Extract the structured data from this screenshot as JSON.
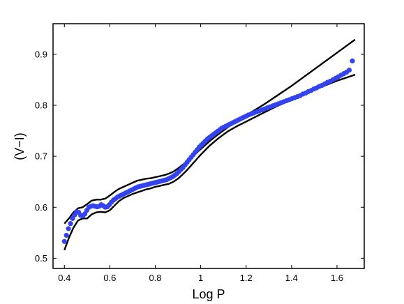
{
  "chart_data": {
    "type": "scatter",
    "xlabel": "Log P",
    "ylabel": "(V−I)",
    "xlim": [
      0.35,
      1.72
    ],
    "ylim": [
      0.48,
      0.96
    ],
    "x_ticks": [
      0.4,
      0.6,
      0.8,
      1.0,
      1.2,
      1.4,
      1.6
    ],
    "x_tick_labels": [
      "0.4",
      "0.6",
      "0.8",
      "1",
      "1.2",
      "1.4",
      "1.6"
    ],
    "y_ticks": [
      0.5,
      0.6,
      0.7,
      0.8,
      0.9
    ],
    "y_tick_labels": [
      "0.5",
      "0.6",
      "0.7",
      "0.8",
      "0.9"
    ],
    "grid": false,
    "legend": "none",
    "colors": {
      "points": "#3344ee",
      "bounds": "#000000"
    },
    "series": [
      {
        "role": "points",
        "x": [
          0.4,
          0.409,
          0.418,
          0.427,
          0.436,
          0.445,
          0.454,
          0.463,
          0.472,
          0.481,
          0.49,
          0.499,
          0.508,
          0.517,
          0.526,
          0.535,
          0.544,
          0.553,
          0.562,
          0.571,
          0.58,
          0.589,
          0.598,
          0.607,
          0.616,
          0.625,
          0.634,
          0.643,
          0.652,
          0.661,
          0.67,
          0.679,
          0.688,
          0.697,
          0.706,
          0.715,
          0.724,
          0.733,
          0.742,
          0.751,
          0.76,
          0.769,
          0.778,
          0.787,
          0.796,
          0.805,
          0.814,
          0.823,
          0.832,
          0.841,
          0.85,
          0.859,
          0.868,
          0.877,
          0.886,
          0.895,
          0.904,
          0.913,
          0.922,
          0.931,
          0.94,
          0.949,
          0.958,
          0.967,
          0.976,
          0.985,
          0.994,
          1.003,
          1.012,
          1.021,
          1.03,
          1.039,
          1.048,
          1.057,
          1.066,
          1.075,
          1.084,
          1.093,
          1.102,
          1.111,
          1.12,
          1.129,
          1.138,
          1.147,
          1.156,
          1.165,
          1.174,
          1.183,
          1.192,
          1.201,
          1.21,
          1.222,
          1.234,
          1.246,
          1.258,
          1.27,
          1.282,
          1.294,
          1.306,
          1.318,
          1.33,
          1.342,
          1.354,
          1.366,
          1.378,
          1.39,
          1.402,
          1.414,
          1.426,
          1.438,
          1.45,
          1.462,
          1.474,
          1.486,
          1.498,
          1.51,
          1.522,
          1.534,
          1.546,
          1.558,
          1.57,
          1.582,
          1.594,
          1.606,
          1.618,
          1.63,
          1.642,
          1.654,
          1.668
        ],
        "y": [
          0.533,
          0.545,
          0.558,
          0.568,
          0.578,
          0.585,
          0.591,
          0.59,
          0.584,
          0.583,
          0.587,
          0.594,
          0.6,
          0.602,
          0.603,
          0.602,
          0.601,
          0.602,
          0.605,
          0.603,
          0.6,
          0.601,
          0.605,
          0.61,
          0.614,
          0.617,
          0.62,
          0.622,
          0.624,
          0.626,
          0.628,
          0.63,
          0.632,
          0.634,
          0.636,
          0.638,
          0.64,
          0.641,
          0.642,
          0.643,
          0.644,
          0.645,
          0.646,
          0.647,
          0.648,
          0.649,
          0.65,
          0.651,
          0.652,
          0.653,
          0.654,
          0.656,
          0.658,
          0.66,
          0.663,
          0.666,
          0.67,
          0.674,
          0.678,
          0.683,
          0.688,
          0.693,
          0.698,
          0.703,
          0.708,
          0.713,
          0.718,
          0.722,
          0.726,
          0.73,
          0.734,
          0.737,
          0.74,
          0.743,
          0.746,
          0.749,
          0.752,
          0.755,
          0.757,
          0.759,
          0.761,
          0.763,
          0.765,
          0.767,
          0.769,
          0.771,
          0.773,
          0.775,
          0.777,
          0.779,
          0.781,
          0.783,
          0.785,
          0.787,
          0.789,
          0.791,
          0.793,
          0.795,
          0.797,
          0.799,
          0.801,
          0.803,
          0.805,
          0.807,
          0.809,
          0.811,
          0.813,
          0.815,
          0.817,
          0.819,
          0.822,
          0.824,
          0.827,
          0.829,
          0.832,
          0.834,
          0.837,
          0.839,
          0.842,
          0.845,
          0.847,
          0.85,
          0.853,
          0.856,
          0.859,
          0.862,
          0.865,
          0.869,
          0.887
        ]
      },
      {
        "role": "upper-bound",
        "x": [
          0.4,
          0.42,
          0.44,
          0.46,
          0.48,
          0.5,
          0.52,
          0.54,
          0.56,
          0.58,
          0.6,
          0.62,
          0.64,
          0.66,
          0.68,
          0.7,
          0.72,
          0.74,
          0.76,
          0.78,
          0.8,
          0.82,
          0.84,
          0.86,
          0.88,
          0.9,
          0.92,
          0.94,
          0.96,
          0.98,
          1.0,
          1.04,
          1.08,
          1.12,
          1.16,
          1.2,
          1.24,
          1.28,
          1.32,
          1.36,
          1.4,
          1.44,
          1.48,
          1.52,
          1.56,
          1.6,
          1.64,
          1.68
        ],
        "y": [
          0.568,
          0.578,
          0.59,
          0.598,
          0.6,
          0.606,
          0.613,
          0.615,
          0.615,
          0.617,
          0.623,
          0.63,
          0.636,
          0.64,
          0.644,
          0.648,
          0.652,
          0.654,
          0.656,
          0.657,
          0.659,
          0.661,
          0.663,
          0.666,
          0.67,
          0.676,
          0.683,
          0.69,
          0.698,
          0.706,
          0.714,
          0.73,
          0.744,
          0.757,
          0.769,
          0.78,
          0.791,
          0.802,
          0.814,
          0.826,
          0.838,
          0.851,
          0.864,
          0.877,
          0.89,
          0.903,
          0.916,
          0.929
        ]
      },
      {
        "role": "lower-bound",
        "x": [
          0.4,
          0.42,
          0.44,
          0.46,
          0.48,
          0.5,
          0.52,
          0.54,
          0.56,
          0.58,
          0.6,
          0.62,
          0.64,
          0.66,
          0.68,
          0.7,
          0.72,
          0.74,
          0.76,
          0.78,
          0.8,
          0.82,
          0.84,
          0.86,
          0.88,
          0.9,
          0.92,
          0.94,
          0.96,
          0.98,
          1.0,
          1.04,
          1.08,
          1.12,
          1.16,
          1.2,
          1.24,
          1.28,
          1.32,
          1.36,
          1.4,
          1.44,
          1.48,
          1.52,
          1.56,
          1.6,
          1.64,
          1.68
        ],
        "y": [
          0.516,
          0.54,
          0.56,
          0.574,
          0.578,
          0.578,
          0.586,
          0.59,
          0.591,
          0.59,
          0.594,
          0.603,
          0.612,
          0.618,
          0.622,
          0.626,
          0.629,
          0.632,
          0.635,
          0.637,
          0.64,
          0.642,
          0.644,
          0.646,
          0.65,
          0.656,
          0.664,
          0.673,
          0.683,
          0.693,
          0.703,
          0.721,
          0.736,
          0.749,
          0.759,
          0.768,
          0.777,
          0.786,
          0.795,
          0.803,
          0.811,
          0.819,
          0.827,
          0.834,
          0.841,
          0.848,
          0.854,
          0.86
        ]
      }
    ]
  }
}
